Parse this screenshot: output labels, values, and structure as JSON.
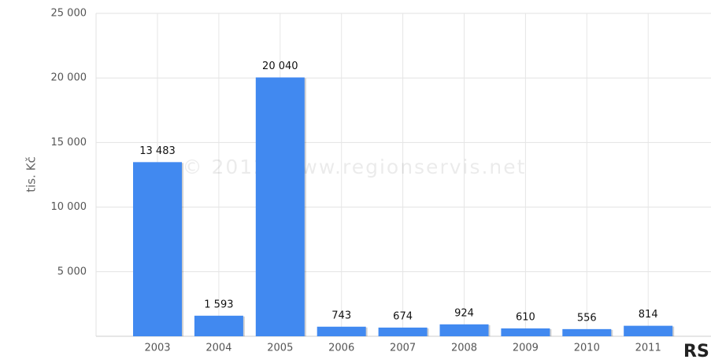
{
  "chart_data": {
    "type": "bar",
    "y_label": "tis. Kč",
    "watermark": "© 2012, www.regionservis.net",
    "logo": "RS",
    "categories": [
      "2003",
      "2004",
      "2005",
      "2006",
      "2007",
      "2008",
      "2009",
      "2010",
      "2011"
    ],
    "values": [
      13483,
      1593,
      20040,
      743,
      674,
      924,
      610,
      556,
      814
    ],
    "value_labels": [
      "13 483",
      "1 593",
      "20 040",
      "743",
      "674",
      "924",
      "610",
      "556",
      "814"
    ],
    "color": "#4189f0",
    "ylim": [
      0,
      25000
    ],
    "yticks": [
      {
        "value": 5000,
        "label": "5 000"
      },
      {
        "value": 10000,
        "label": "10 000"
      },
      {
        "value": 15000,
        "label": "15 000"
      },
      {
        "value": 20000,
        "label": "20 000"
      },
      {
        "value": 25000,
        "label": "25 000"
      }
    ],
    "grid": true
  }
}
